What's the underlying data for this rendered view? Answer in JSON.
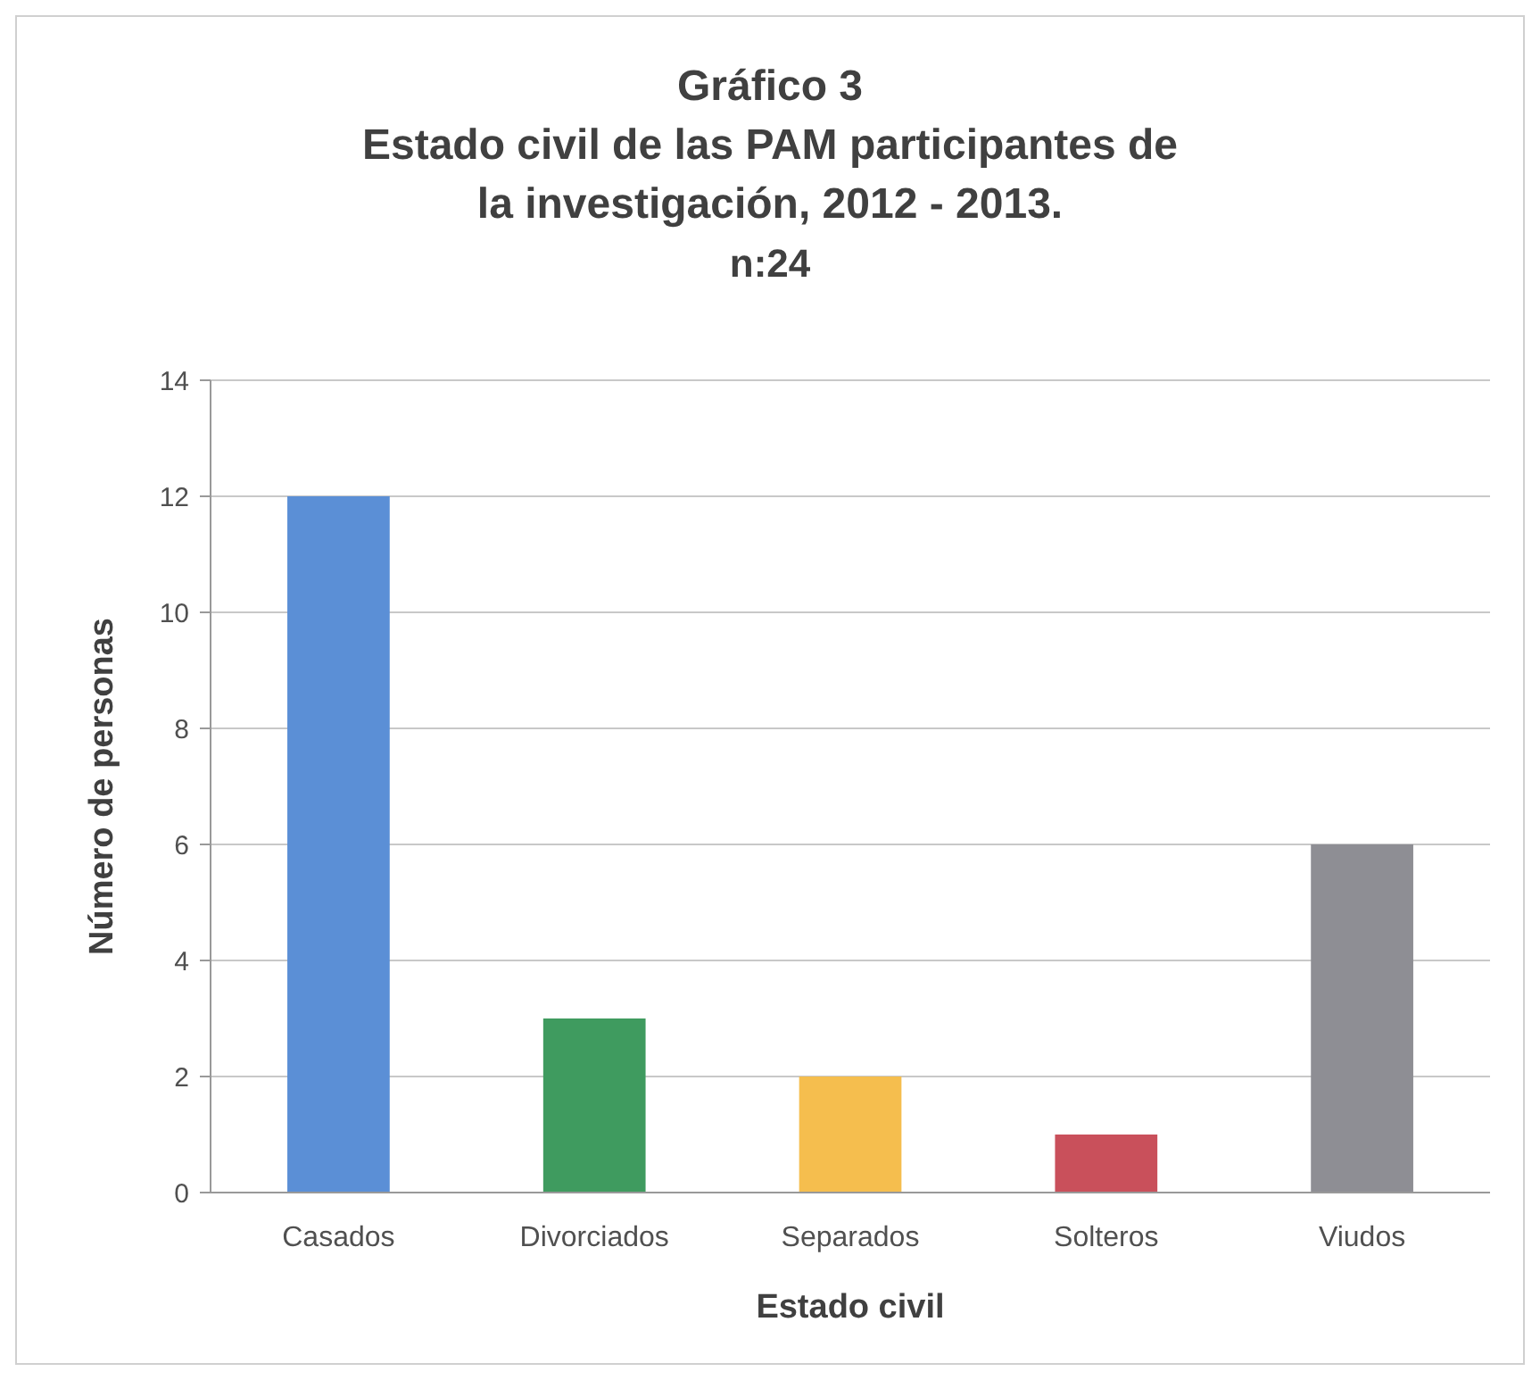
{
  "chart_data": {
    "type": "bar",
    "title": "Gráfico 3\nEstado civil de las PAM participantes de\nla investigación, 2012 - 2013.",
    "subtitle": "n:24",
    "xlabel": "Estado civil",
    "ylabel": "Número de personas",
    "categories": [
      "Casados",
      "Divorciados",
      "Separados",
      "Solteros",
      "Viudos"
    ],
    "values": [
      12,
      3,
      2,
      1,
      6
    ],
    "colors": [
      "#5b8fd6",
      "#3f9b5f",
      "#f5be4e",
      "#c9505b",
      "#8e8e94"
    ],
    "ylim": [
      0,
      14
    ],
    "yticks": [
      0,
      2,
      4,
      6,
      8,
      10,
      12,
      14
    ],
    "grid": "y"
  }
}
